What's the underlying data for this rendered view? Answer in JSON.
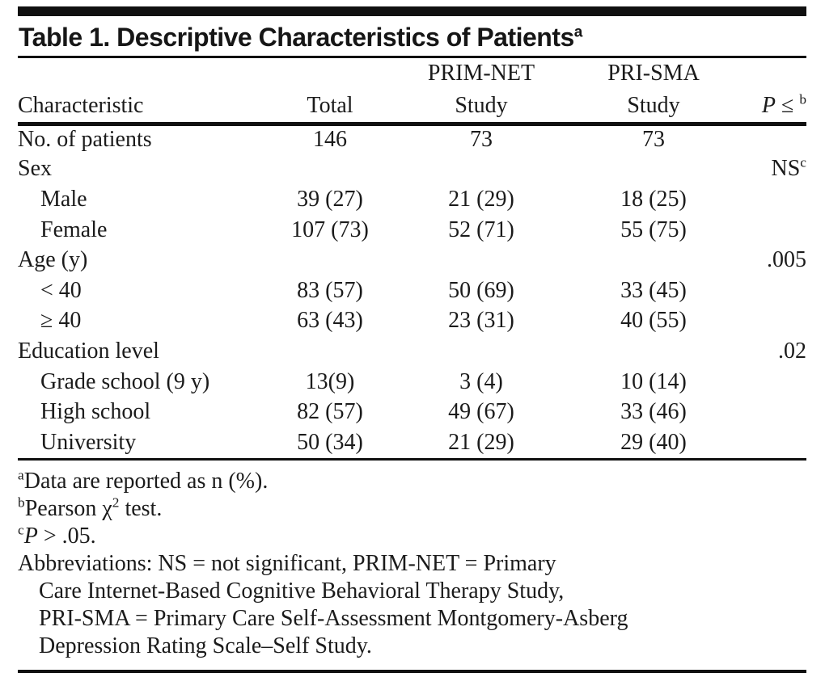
{
  "colors": {
    "text": "#1b1b1b",
    "rule": "#101010",
    "background": "#ffffff"
  },
  "title_rich": [
    {
      "t": "Table 1. Descriptive Characteristics of Patients"
    },
    {
      "t": "a",
      "s": "sup"
    }
  ],
  "table": {
    "columns": [
      {
        "label": "Characteristic"
      },
      {
        "label": "Total"
      },
      {
        "group": "PRIM-NET",
        "label": "Study"
      },
      {
        "group": "PRI-SMA",
        "label": "Study"
      },
      {
        "label_rich": [
          {
            "t": "P",
            "s": "i"
          },
          {
            "t": " ≤ "
          },
          {
            "t": "b",
            "s": "sup"
          }
        ]
      }
    ],
    "rows": [
      {
        "label": "No. of patients",
        "indent": false,
        "total": "146",
        "primnet": "73",
        "prisma": "73",
        "p": []
      },
      {
        "label": "Sex",
        "indent": false,
        "total": "",
        "primnet": "",
        "prisma": "",
        "p": [
          {
            "t": "NS"
          },
          {
            "t": "c",
            "s": "sup"
          }
        ]
      },
      {
        "label": "Male",
        "indent": true,
        "total": "39 (27)",
        "primnet": "21 (29)",
        "prisma": "18 (25)",
        "p": []
      },
      {
        "label": "Female",
        "indent": true,
        "total": "107 (73)",
        "primnet": "52 (71)",
        "prisma": "55 (75)",
        "p": []
      },
      {
        "label": "Age (y)",
        "indent": false,
        "total": "",
        "primnet": "",
        "prisma": "",
        "p": [
          {
            "t": ".005"
          }
        ]
      },
      {
        "label": "< 40",
        "indent": true,
        "total": "83 (57)",
        "primnet": "50 (69)",
        "prisma": "33 (45)",
        "p": []
      },
      {
        "label": "≥ 40",
        "indent": true,
        "total": "63 (43)",
        "primnet": "23 (31)",
        "prisma": "40 (55)",
        "p": []
      },
      {
        "label": "Education level",
        "indent": false,
        "total": "",
        "primnet": "",
        "prisma": "",
        "p": [
          {
            "t": ".02"
          }
        ]
      },
      {
        "label": "Grade school (9 y)",
        "indent": true,
        "total": "13(9)",
        "primnet": "3 (4)",
        "prisma": "10 (14)",
        "p": []
      },
      {
        "label": "High school",
        "indent": true,
        "total": "82 (57)",
        "primnet": "49 (67)",
        "prisma": "33 (46)",
        "p": []
      },
      {
        "label": "University",
        "indent": true,
        "total": "50 (34)",
        "primnet": "21 (29)",
        "prisma": "29 (40)",
        "p": []
      }
    ]
  },
  "footnotes": [
    {
      "name": "footnote-a",
      "indent": false,
      "segments": [
        {
          "t": "a",
          "s": "sup"
        },
        {
          "t": "Data are reported as n (%)."
        }
      ]
    },
    {
      "name": "footnote-b",
      "indent": false,
      "segments": [
        {
          "t": "b",
          "s": "sup"
        },
        {
          "t": "Pearson χ"
        },
        {
          "t": "2",
          "s": "sup"
        },
        {
          "t": " test."
        }
      ]
    },
    {
      "name": "footnote-c",
      "indent": false,
      "segments": [
        {
          "t": "c",
          "s": "sup"
        },
        {
          "t": "P",
          "s": "i"
        },
        {
          "t": " > .05."
        }
      ]
    },
    {
      "name": "abbreviations-line-1",
      "indent": false,
      "segments": [
        {
          "t": "Abbreviations: NS = not significant, PRIM-NET = Primary"
        }
      ]
    },
    {
      "name": "abbreviations-line-2",
      "indent": true,
      "segments": [
        {
          "t": "Care Internet-Based Cognitive Behavioral Therapy Study,"
        }
      ]
    },
    {
      "name": "abbreviations-line-3",
      "indent": true,
      "segments": [
        {
          "t": "PRI-SMA = Primary Care Self-Assessment Montgomery-Asberg"
        }
      ]
    },
    {
      "name": "abbreviations-line-4",
      "indent": true,
      "segments": [
        {
          "t": "Depression Rating Scale–Self Study."
        }
      ]
    }
  ]
}
